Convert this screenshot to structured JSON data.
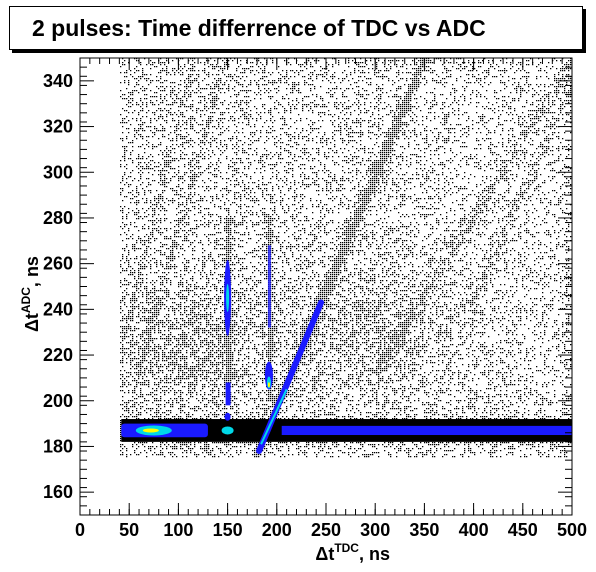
{
  "chart_data": {
    "type": "heatmap",
    "title": "2 pulses: Time differrence of TDC vs ADC",
    "xlabel": {
      "main": "Δt",
      "sup": "TDC",
      "suffix": ", ns"
    },
    "ylabel": {
      "main": "Δt",
      "sup": "ADC",
      "suffix": ", ns"
    },
    "xlim": [
      0,
      500
    ],
    "ylim": [
      150,
      350
    ],
    "x_ticks": [
      0,
      50,
      100,
      150,
      200,
      250,
      300,
      350,
      400,
      450,
      500
    ],
    "y_ticks": [
      160,
      180,
      200,
      220,
      240,
      260,
      280,
      300,
      320,
      340
    ],
    "grid": false,
    "colors": {
      "low": "#000000",
      "mid": "#1a1aff",
      "high": "#00d8e8",
      "peak": "#ffff00"
    },
    "features": [
      {
        "kind": "band",
        "y": 187,
        "x_from": 40,
        "x_to": 500,
        "intensity": "high"
      },
      {
        "kind": "diagonal",
        "x": [
          180,
          350
        ],
        "y": [
          178,
          350
        ],
        "intensity": "high"
      },
      {
        "kind": "diagonal",
        "x": [
          45,
          115
        ],
        "y": [
          230,
          350
        ],
        "intensity": "low"
      },
      {
        "kind": "diagonal",
        "x": [
          62,
          148
        ],
        "y": [
          218,
          350
        ],
        "intensity": "low"
      },
      {
        "kind": "diagonal",
        "x": [
          305,
          500
        ],
        "y": [
          215,
          350
        ],
        "intensity": "low"
      },
      {
        "kind": "diagonal",
        "x": [
          400,
          500
        ],
        "y": [
          245,
          340
        ],
        "intensity": "low"
      },
      {
        "kind": "vertical",
        "x": 150,
        "y": [
          200,
          280
        ],
        "intensity": "high"
      },
      {
        "kind": "vertical",
        "x": 192,
        "y": [
          200,
          280
        ],
        "intensity": "mid"
      },
      {
        "kind": "hotspot",
        "x": 75,
        "y": 187,
        "intensity": "peak"
      },
      {
        "kind": "hotspot",
        "x": 150,
        "y": 245,
        "intensity": "peak"
      },
      {
        "kind": "hotspot",
        "x": 192,
        "y": 208,
        "intensity": "peak"
      }
    ]
  }
}
